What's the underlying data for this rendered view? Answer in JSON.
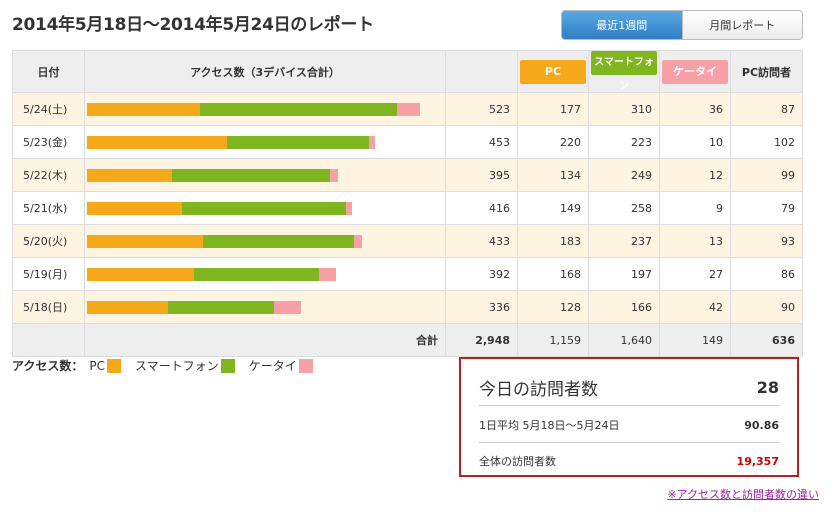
{
  "title": "2014年5月18日〜2014年5月24日のレポート",
  "tabs": [
    {
      "label": "最近1週間",
      "active": true
    },
    {
      "label": "月間レポート",
      "active": false
    }
  ],
  "headers": {
    "date": "日付",
    "access": "アクセス数（3デバイス合計）",
    "pc": "PC",
    "smartphone": "スマートフォン",
    "keitai": "ケータイ",
    "pc_visitors": "PC訪問者"
  },
  "colors": {
    "pc": "#f6a81b",
    "smartphone": "#7fb51e",
    "keitai": "#f7a1a6",
    "accent": "#3d8fd0",
    "highlight": "#b22222"
  },
  "rows": [
    {
      "date": "5/24(土)",
      "total": "523",
      "pc": "177",
      "smartphone": "310",
      "keitai": "36",
      "pc_visitors": "87"
    },
    {
      "date": "5/23(金)",
      "total": "453",
      "pc": "220",
      "smartphone": "223",
      "keitai": "10",
      "pc_visitors": "102"
    },
    {
      "date": "5/22(木)",
      "total": "395",
      "pc": "134",
      "smartphone": "249",
      "keitai": "12",
      "pc_visitors": "99"
    },
    {
      "date": "5/21(水)",
      "total": "416",
      "pc": "149",
      "smartphone": "258",
      "keitai": "9",
      "pc_visitors": "79"
    },
    {
      "date": "5/20(火)",
      "total": "433",
      "pc": "183",
      "smartphone": "237",
      "keitai": "13",
      "pc_visitors": "93"
    },
    {
      "date": "5/19(月)",
      "total": "392",
      "pc": "168",
      "smartphone": "197",
      "keitai": "27",
      "pc_visitors": "86"
    },
    {
      "date": "5/18(日)",
      "total": "336",
      "pc": "128",
      "smartphone": "166",
      "keitai": "42",
      "pc_visitors": "90"
    }
  ],
  "totals": {
    "label": "合計",
    "total": "2,948",
    "pc": "1,159",
    "smartphone": "1,640",
    "keitai": "149",
    "pc_visitors": "636"
  },
  "legend": {
    "label": "アクセス数：",
    "pc": "PC",
    "smartphone": "スマートフォン",
    "keitai": "ケータイ"
  },
  "visitors": {
    "today_label": "今日の訪問者数",
    "today_value": "28",
    "avg_label": "1日平均 5月18日〜5月24日",
    "avg_value": "90.86",
    "total_label": "全体の訪問者数",
    "total_value": "19,357"
  },
  "link": "※アクセス数と訪問者数の違い"
}
